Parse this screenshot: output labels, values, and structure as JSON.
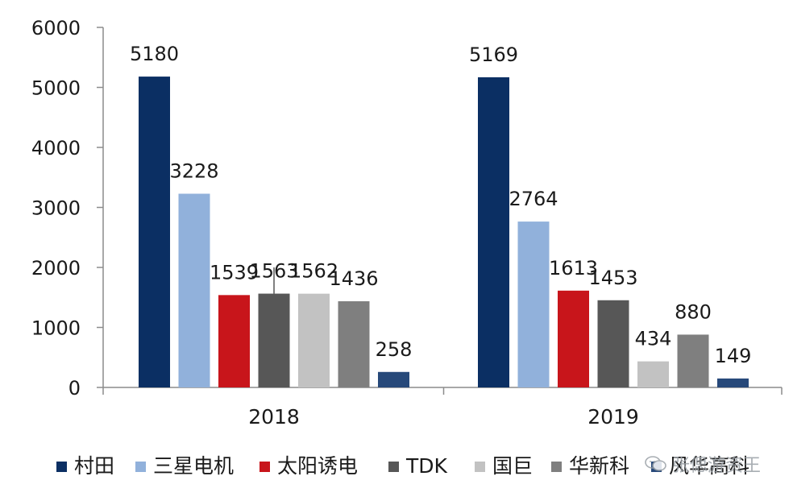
{
  "chart_data": {
    "type": "bar",
    "categories": [
      "2018",
      "2019"
    ],
    "series": [
      {
        "name": "村田",
        "color": "#0b2f63",
        "values": [
          5180,
          5169
        ]
      },
      {
        "name": "三星电机",
        "color": "#91b1db",
        "values": [
          3228,
          2764
        ]
      },
      {
        "name": "太阳诱电",
        "color": "#c8151b",
        "values": [
          1539,
          1613
        ]
      },
      {
        "name": "TDK",
        "color": "#575757",
        "values": [
          1563,
          1453
        ]
      },
      {
        "name": "国巨",
        "color": "#c2c2c2",
        "values": [
          1562,
          434
        ]
      },
      {
        "name": "华新科",
        "color": "#7f7f7f",
        "values": [
          1436,
          880
        ]
      },
      {
        "name": "风华高科",
        "color": "#27497a",
        "values": [
          258,
          149
        ]
      }
    ],
    "ylim": [
      0,
      6000
    ],
    "yticks": [
      0,
      1000,
      2000,
      3000,
      4000,
      5000,
      6000
    ],
    "title": "",
    "xlabel": "",
    "ylabel": "",
    "legend_position": "bottom",
    "grid": false
  },
  "watermark": {
    "text": "张偲游资王",
    "icon": "wechat-icon"
  }
}
